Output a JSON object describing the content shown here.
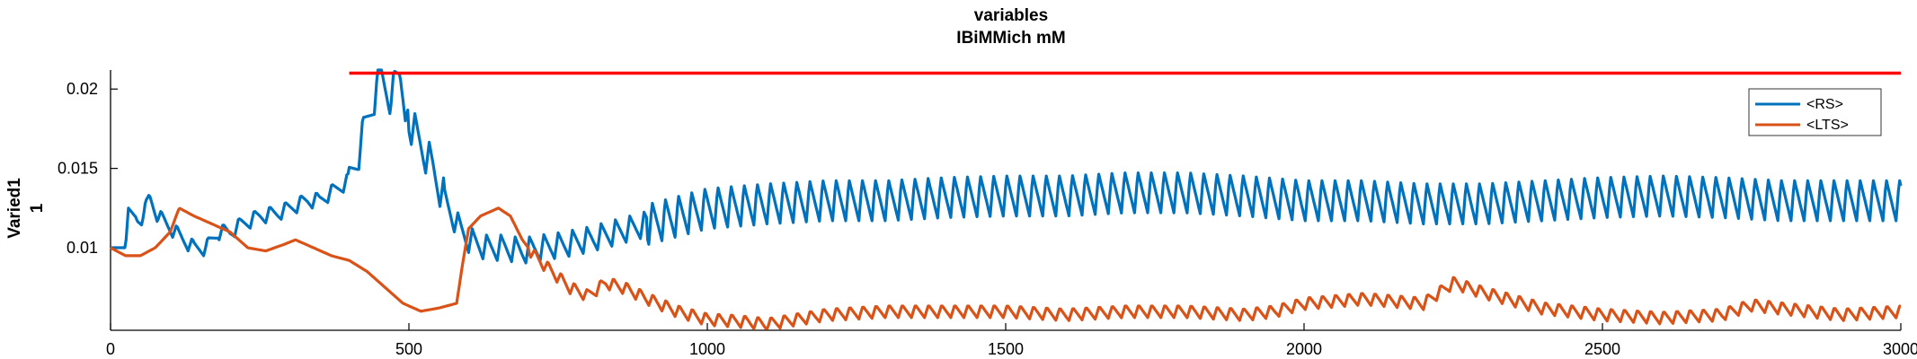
{
  "chart_data": {
    "type": "line",
    "title": "variables",
    "subtitle": "IBiMMich mM",
    "ylabel": [
      "Varied1",
      "1"
    ],
    "xlim": [
      0,
      3000
    ],
    "ylim": [
      0.0048,
      0.0212
    ],
    "xticks": [
      0,
      500,
      1000,
      1500,
      2000,
      2500,
      3000
    ],
    "yticks": [
      0.01,
      0.015,
      0.02
    ],
    "ytick_labels": [
      "0.01",
      "0.015",
      "0.02"
    ],
    "grid": false,
    "legend_position": "top-right",
    "threshold": {
      "color": "#ff0000",
      "y": 0.021,
      "x_start": 400,
      "x_end": 3000
    },
    "series": [
      {
        "name": "<RS>",
        "color": "#0072BD",
        "keypoints": [
          [
            0,
            0.01
          ],
          [
            25,
            0.01
          ],
          [
            30,
            0.0125
          ],
          [
            45,
            0.0118
          ],
          [
            55,
            0.012
          ],
          [
            65,
            0.0132
          ],
          [
            80,
            0.012
          ],
          [
            100,
            0.0113
          ],
          [
            120,
            0.0106
          ],
          [
            140,
            0.01
          ],
          [
            160,
            0.01
          ],
          [
            180,
            0.011
          ],
          [
            200,
            0.011
          ],
          [
            220,
            0.0115
          ],
          [
            250,
            0.012
          ],
          [
            280,
            0.0122
          ],
          [
            300,
            0.0125
          ],
          [
            330,
            0.013
          ],
          [
            350,
            0.013
          ],
          [
            370,
            0.0135
          ],
          [
            390,
            0.014
          ],
          [
            400,
            0.0143
          ],
          [
            415,
            0.016
          ],
          [
            430,
            0.018
          ],
          [
            445,
            0.02
          ],
          [
            450,
            0.021
          ],
          [
            470,
            0.0195
          ],
          [
            485,
            0.021
          ],
          [
            500,
            0.018
          ],
          [
            520,
            0.0165
          ],
          [
            540,
            0.015
          ],
          [
            560,
            0.013
          ],
          [
            580,
            0.0115
          ],
          [
            600,
            0.0105
          ],
          [
            630,
            0.01
          ],
          [
            660,
            0.01
          ],
          [
            690,
            0.0098
          ],
          [
            720,
            0.01
          ],
          [
            760,
            0.0102
          ],
          [
            800,
            0.0105
          ],
          [
            850,
            0.011
          ],
          [
            900,
            0.0115
          ],
          [
            950,
            0.012
          ],
          [
            1000,
            0.0125
          ],
          [
            1100,
            0.0128
          ],
          [
            1200,
            0.013
          ],
          [
            1300,
            0.013
          ],
          [
            1400,
            0.0132
          ],
          [
            1500,
            0.0133
          ],
          [
            1600,
            0.0133
          ],
          [
            1700,
            0.0135
          ],
          [
            1800,
            0.0135
          ],
          [
            1900,
            0.0133
          ],
          [
            2000,
            0.013
          ],
          [
            2100,
            0.013
          ],
          [
            2200,
            0.0128
          ],
          [
            2300,
            0.0128
          ],
          [
            2400,
            0.013
          ],
          [
            2500,
            0.0132
          ],
          [
            2600,
            0.0133
          ],
          [
            2700,
            0.0132
          ],
          [
            2800,
            0.013
          ],
          [
            2900,
            0.013
          ],
          [
            3000,
            0.013
          ]
        ]
      },
      {
        "name": "<LTS>",
        "color": "#D95319",
        "keypoints": [
          [
            0,
            0.01
          ],
          [
            25,
            0.0095
          ],
          [
            50,
            0.0095
          ],
          [
            75,
            0.01
          ],
          [
            100,
            0.011
          ],
          [
            115,
            0.0125
          ],
          [
            140,
            0.012
          ],
          [
            170,
            0.0115
          ],
          [
            200,
            0.011
          ],
          [
            230,
            0.01
          ],
          [
            260,
            0.0098
          ],
          [
            290,
            0.0102
          ],
          [
            310,
            0.0105
          ],
          [
            340,
            0.01
          ],
          [
            370,
            0.0095
          ],
          [
            400,
            0.0092
          ],
          [
            430,
            0.0085
          ],
          [
            460,
            0.0075
          ],
          [
            490,
            0.0065
          ],
          [
            520,
            0.006
          ],
          [
            550,
            0.0062
          ],
          [
            580,
            0.0065
          ],
          [
            590,
            0.009
          ],
          [
            600,
            0.0112
          ],
          [
            620,
            0.012
          ],
          [
            650,
            0.0125
          ],
          [
            670,
            0.012
          ],
          [
            690,
            0.0105
          ],
          [
            710,
            0.0095
          ],
          [
            740,
            0.0085
          ],
          [
            770,
            0.0075
          ],
          [
            800,
            0.007
          ],
          [
            830,
            0.0078
          ],
          [
            860,
            0.0075
          ],
          [
            900,
            0.0068
          ],
          [
            950,
            0.006
          ],
          [
            1000,
            0.0055
          ],
          [
            1050,
            0.0054
          ],
          [
            1100,
            0.0052
          ],
          [
            1200,
            0.0058
          ],
          [
            1300,
            0.006
          ],
          [
            1400,
            0.006
          ],
          [
            1500,
            0.006
          ],
          [
            1600,
            0.0058
          ],
          [
            1700,
            0.006
          ],
          [
            1800,
            0.006
          ],
          [
            1900,
            0.0058
          ],
          [
            1950,
            0.006
          ],
          [
            2000,
            0.0065
          ],
          [
            2100,
            0.0068
          ],
          [
            2200,
            0.0065
          ],
          [
            2250,
            0.0078
          ],
          [
            2300,
            0.0072
          ],
          [
            2400,
            0.0062
          ],
          [
            2500,
            0.0058
          ],
          [
            2600,
            0.0056
          ],
          [
            2700,
            0.0058
          ],
          [
            2750,
            0.0064
          ],
          [
            2800,
            0.0062
          ],
          [
            2900,
            0.0058
          ],
          [
            3000,
            0.006
          ]
        ]
      }
    ]
  }
}
